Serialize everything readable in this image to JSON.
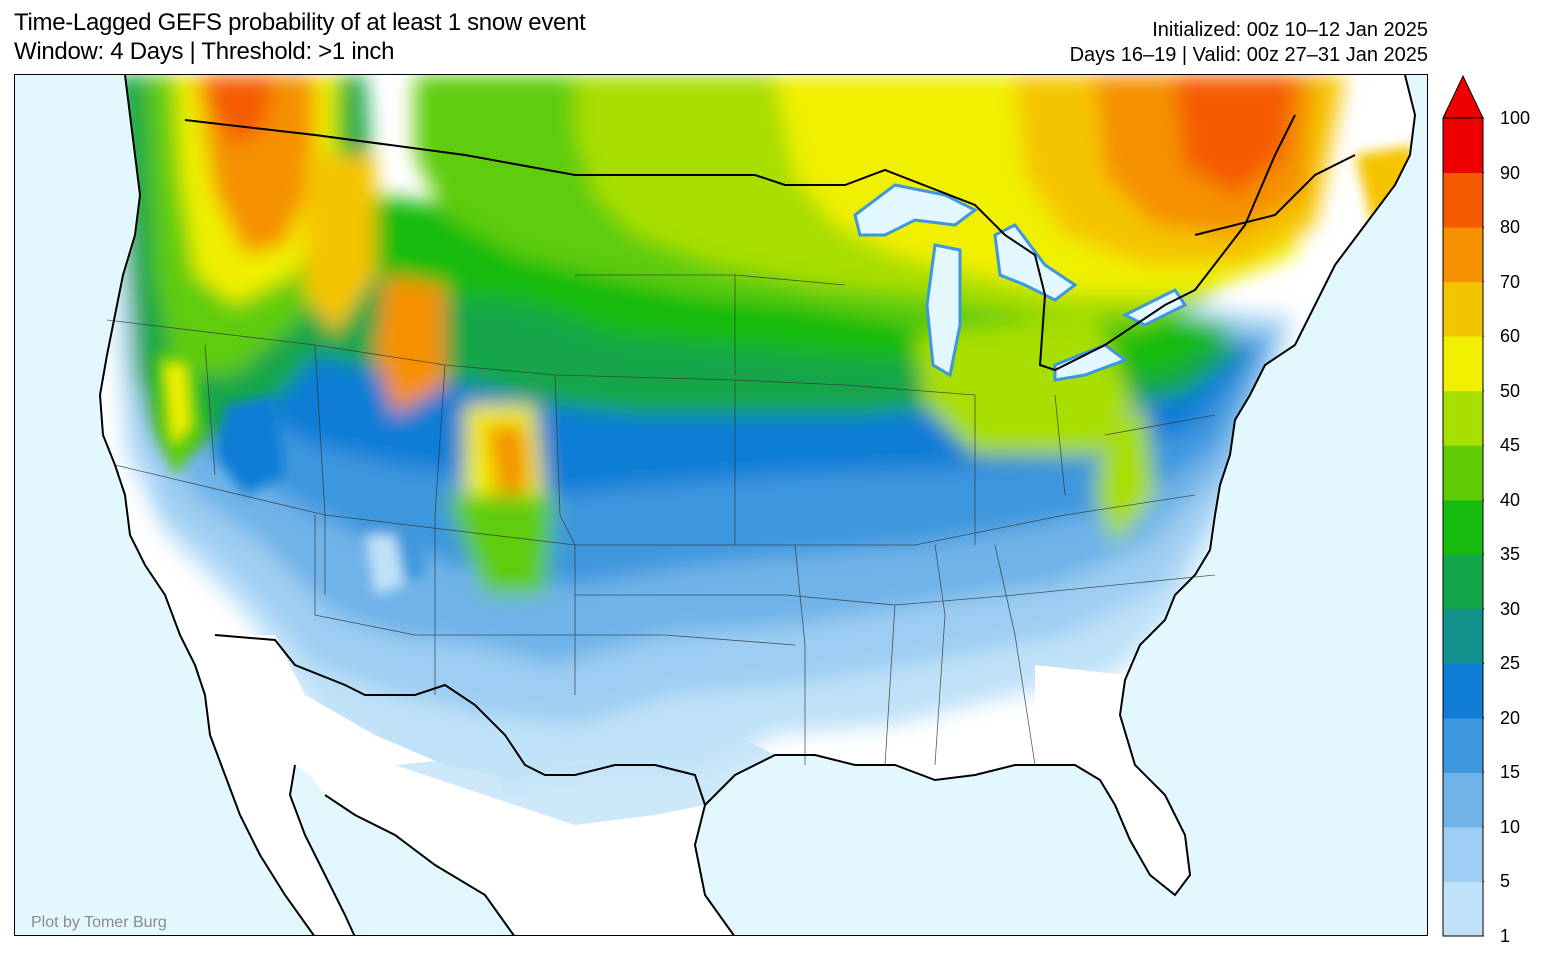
{
  "title": {
    "line1": "Time-Lagged GEFS probability of at least 1 snow event",
    "line2": "Window: 4 Days | Threshold: >1 inch"
  },
  "meta": {
    "initialized": "Initialized: 00z 10–12 Jan 2025",
    "valid": "Days 16–19 | Valid: 00z 27–31 Jan 2025"
  },
  "credit": "Plot by Tomer Burg",
  "legend": {
    "ticks": [
      "1",
      "5",
      "10",
      "15",
      "20",
      "25",
      "30",
      "35",
      "40",
      "45",
      "50",
      "60",
      "70",
      "80",
      "90",
      "100"
    ],
    "colors": [
      "#c0e2f8",
      "#9dcdf2",
      "#6fb3e8",
      "#3d97de",
      "#0f7dd6",
      "#10918c",
      "#14a64a",
      "#17bb0d",
      "#5fcc07",
      "#a8de00",
      "#f0f000",
      "#f5c400",
      "#f59000",
      "#f55a00",
      "#ee0000"
    ],
    "extend": "max"
  },
  "map": {
    "ocean_color": "#e3f8fe",
    "land_color": "#ffffff"
  }
}
